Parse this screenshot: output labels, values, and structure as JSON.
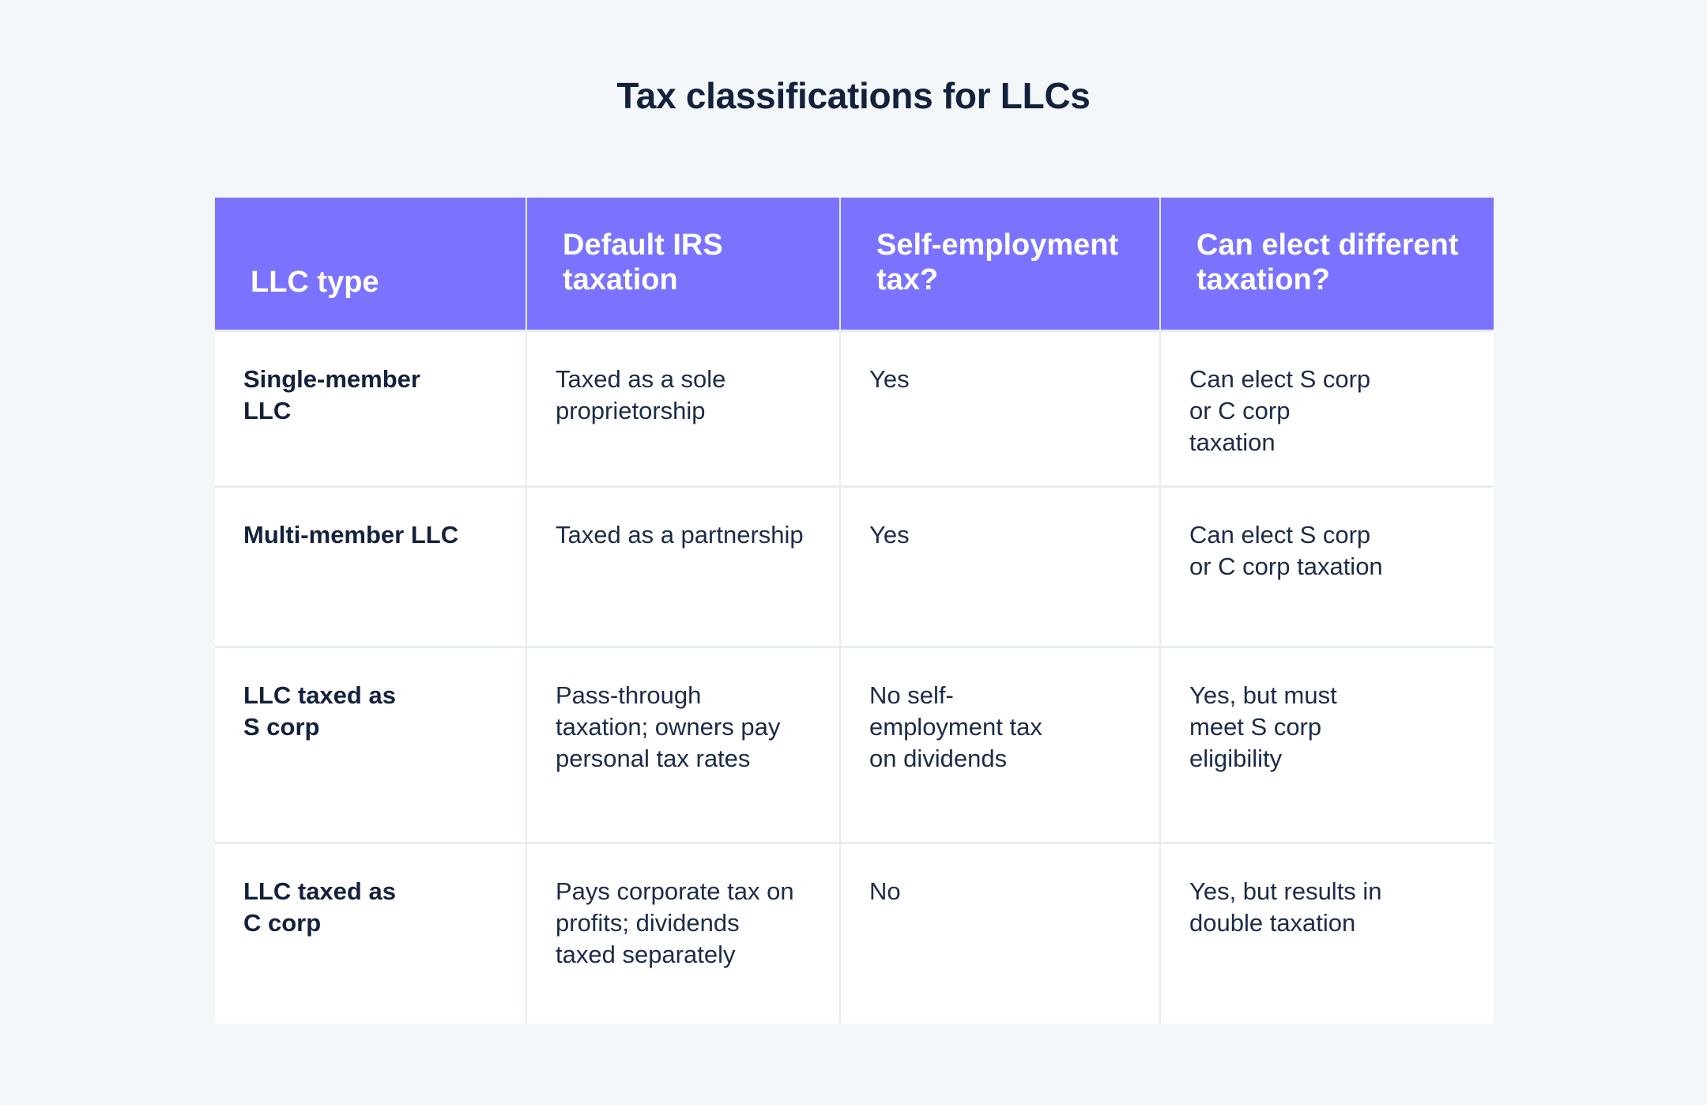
{
  "title": "Tax classifications for LLCs",
  "chart_data": {
    "type": "table",
    "title": "Tax classifications for LLCs",
    "columns": [
      "LLC type",
      "Default IRS\ntaxation",
      "Self-employment\ntax?",
      "Can elect different\ntaxation?"
    ],
    "rows": [
      [
        "Single-member\nLLC",
        "Taxed as a sole\nproprietorship",
        "Yes",
        "Can elect S corp\nor C corp\ntaxation"
      ],
      [
        "Multi-member LLC",
        "Taxed as a partnership",
        "Yes",
        "Can elect S corp\nor C corp taxation"
      ],
      [
        "LLC taxed as\nS corp",
        "Pass-through\ntaxation; owners pay\npersonal tax rates",
        "No self-\nemployment tax\non dividends",
        "Yes, but must\nmeet S corp\neligibility"
      ],
      [
        "LLC taxed as\nC corp",
        "Pays corporate tax on\nprofits; dividends\ntaxed separately",
        "No",
        "Yes, but results in\ndouble taxation"
      ]
    ]
  },
  "colors": {
    "background": "#f4f7fa",
    "header_bg": "#7b73ff",
    "header_text": "#ffffff",
    "text": "#1c2b48",
    "grid": "#e6ecf2"
  }
}
